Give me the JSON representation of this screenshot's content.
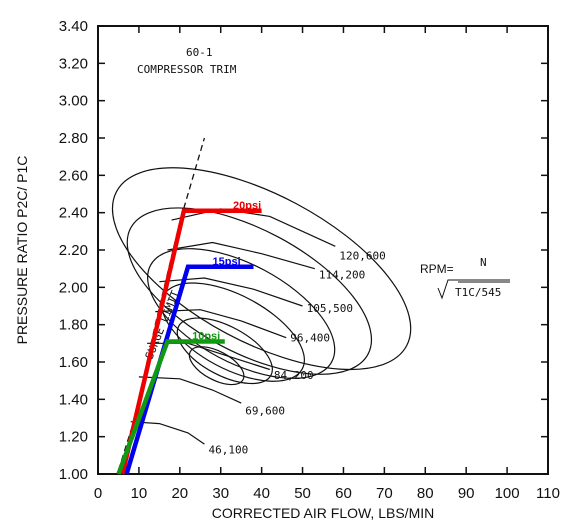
{
  "chart_data": {
    "type": "line",
    "title": "60-1",
    "subtitle": "COMPRESSOR TRIM",
    "xlabel": "CORRECTED AIR FLOW, LBS/MIN",
    "ylabel": "PRESSURE RATIO P2C/ P1C",
    "xlim": [
      0,
      110
    ],
    "ylim": [
      1.0,
      3.4
    ],
    "x_ticks": [
      "0",
      "10",
      "20",
      "30",
      "40",
      "50",
      "60",
      "70",
      "80",
      "90",
      "100",
      "110"
    ],
    "y_ticks": [
      "1.00",
      "1.20",
      "1.40",
      "1.60",
      "1.80",
      "2.00",
      "2.20",
      "2.40",
      "2.60",
      "2.80",
      "3.00",
      "3.20",
      "3.40"
    ],
    "surge_label": "SURGE LIMIT",
    "rpm_formula": {
      "prefix": "RPM=",
      "numerator": "N",
      "denominator": "T1C/545"
    },
    "speed_lines": [
      {
        "label": "46,100",
        "points": [
          [
            8,
            1.28
          ],
          [
            15,
            1.27
          ],
          [
            22,
            1.22
          ],
          [
            26,
            1.16
          ]
        ],
        "label_at": [
          27,
          1.13
        ]
      },
      {
        "label": "69,600",
        "points": [
          [
            10,
            1.52
          ],
          [
            20,
            1.51
          ],
          [
            28,
            1.45
          ],
          [
            35,
            1.38
          ]
        ],
        "label_at": [
          36,
          1.34
        ]
      },
      {
        "label": "84,200",
        "points": [
          [
            12,
            1.7
          ],
          [
            22,
            1.7
          ],
          [
            32,
            1.63
          ],
          [
            42,
            1.56
          ]
        ],
        "label_at": [
          43,
          1.53
        ]
      },
      {
        "label": "96,400",
        "points": [
          [
            14,
            1.87
          ],
          [
            25,
            1.88
          ],
          [
            35,
            1.82
          ],
          [
            46,
            1.73
          ]
        ],
        "label_at": [
          47,
          1.73
        ]
      },
      {
        "label": "105,500",
        "points": [
          [
            15,
            2.03
          ],
          [
            26,
            2.05
          ],
          [
            38,
            1.99
          ],
          [
            50,
            1.9
          ]
        ],
        "label_at": [
          51,
          1.89
        ]
      },
      {
        "label": "114,200",
        "points": [
          [
            17,
            2.2
          ],
          [
            28,
            2.24
          ],
          [
            40,
            2.18
          ],
          [
            53,
            2.1
          ]
        ],
        "label_at": [
          54,
          2.07
        ]
      },
      {
        "label": "120,600",
        "points": [
          [
            18,
            2.36
          ],
          [
            30,
            2.42
          ],
          [
            42,
            2.38
          ],
          [
            58,
            2.22
          ]
        ],
        "label_at": [
          59,
          2.17
        ]
      }
    ],
    "surge_line": [
      [
        5,
        1.02
      ],
      [
        9,
        1.3
      ],
      [
        14,
        1.8
      ],
      [
        20,
        2.35
      ],
      [
        26,
        2.8
      ]
    ],
    "efficiency_islands": [
      {
        "cx": 29,
        "cy": 1.58,
        "rx": 3.5,
        "ry": 0.16
      },
      {
        "cx": 31,
        "cy": 1.66,
        "rx": 6,
        "ry": 0.28
      },
      {
        "cx": 33,
        "cy": 1.76,
        "rx": 9,
        "ry": 0.42
      },
      {
        "cx": 35,
        "cy": 1.86,
        "rx": 12,
        "ry": 0.55
      },
      {
        "cx": 37,
        "cy": 1.98,
        "rx": 15,
        "ry": 0.72
      },
      {
        "cx": 40,
        "cy": 2.1,
        "rx": 18,
        "ry": 0.88
      }
    ],
    "series": [
      {
        "name": "20psi",
        "color": "#ee0000",
        "points": [
          [
            6,
            1.0
          ],
          [
            21,
            2.41
          ],
          [
            40,
            2.41
          ]
        ],
        "label_at": [
          33,
          2.42
        ]
      },
      {
        "name": "15psi",
        "color": "#0000ee",
        "points": [
          [
            7,
            1.0
          ],
          [
            22,
            2.11
          ],
          [
            38,
            2.11
          ]
        ],
        "label_at": [
          28,
          2.12
        ]
      },
      {
        "name": "10psi",
        "color": "#119911",
        "points": [
          [
            5,
            1.0
          ],
          [
            17,
            1.71
          ],
          [
            31,
            1.71
          ]
        ],
        "label_at": [
          23,
          1.72
        ]
      }
    ]
  }
}
